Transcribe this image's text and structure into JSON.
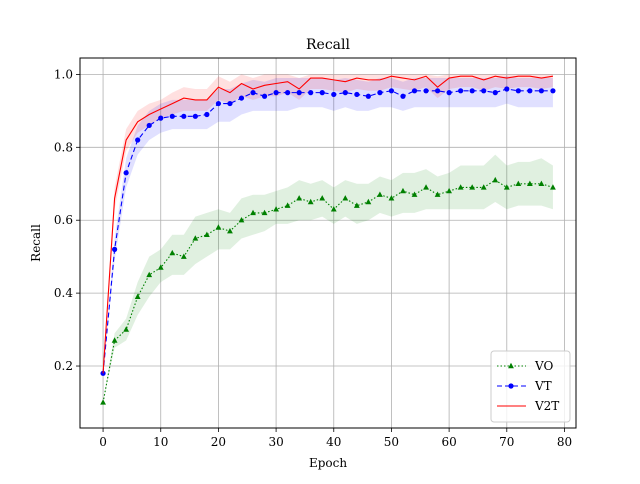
{
  "chart_data": {
    "type": "line",
    "title": "Recall",
    "xlabel": "Epoch",
    "ylabel": "Recall",
    "xlim": [
      -4,
      82
    ],
    "ylim": [
      0.03,
      1.045
    ],
    "xticks": [
      0,
      10,
      20,
      30,
      40,
      50,
      60,
      70,
      80
    ],
    "yticks": [
      0.2,
      0.4,
      0.6,
      0.8,
      1.0
    ],
    "xtick_labels": [
      "0",
      "10",
      "20",
      "30",
      "40",
      "50",
      "60",
      "70",
      "80"
    ],
    "ytick_labels": [
      "0.2",
      "0.4",
      "0.6",
      "0.8",
      "1.0"
    ],
    "grid": true,
    "legend_position": "lower-right",
    "x": [
      0,
      2,
      4,
      6,
      8,
      10,
      12,
      14,
      16,
      18,
      20,
      22,
      24,
      26,
      28,
      30,
      32,
      34,
      36,
      38,
      40,
      42,
      44,
      46,
      48,
      50,
      52,
      54,
      56,
      58,
      60,
      62,
      64,
      66,
      68,
      70,
      72,
      74,
      76,
      78
    ],
    "series": [
      {
        "name": "VO",
        "color": "#008000",
        "style": "dotted",
        "marker": "triangle",
        "values": [
          0.1,
          0.27,
          0.3,
          0.39,
          0.45,
          0.47,
          0.51,
          0.5,
          0.55,
          0.56,
          0.58,
          0.57,
          0.6,
          0.62,
          0.62,
          0.63,
          0.64,
          0.66,
          0.65,
          0.66,
          0.63,
          0.66,
          0.64,
          0.65,
          0.67,
          0.66,
          0.68,
          0.67,
          0.69,
          0.67,
          0.68,
          0.69,
          0.69,
          0.69,
          0.71,
          0.69,
          0.7,
          0.7,
          0.7,
          0.69
        ],
        "lower": [
          0.1,
          0.25,
          0.27,
          0.34,
          0.39,
          0.43,
          0.45,
          0.45,
          0.48,
          0.5,
          0.52,
          0.52,
          0.55,
          0.56,
          0.57,
          0.59,
          0.59,
          0.6,
          0.6,
          0.61,
          0.59,
          0.61,
          0.59,
          0.6,
          0.62,
          0.61,
          0.62,
          0.62,
          0.63,
          0.63,
          0.63,
          0.63,
          0.63,
          0.63,
          0.65,
          0.63,
          0.64,
          0.64,
          0.64,
          0.63
        ],
        "upper": [
          0.1,
          0.29,
          0.33,
          0.43,
          0.5,
          0.52,
          0.56,
          0.56,
          0.61,
          0.62,
          0.63,
          0.62,
          0.66,
          0.67,
          0.67,
          0.68,
          0.69,
          0.71,
          0.7,
          0.71,
          0.69,
          0.71,
          0.7,
          0.7,
          0.72,
          0.71,
          0.73,
          0.73,
          0.74,
          0.72,
          0.73,
          0.75,
          0.75,
          0.75,
          0.78,
          0.75,
          0.76,
          0.76,
          0.77,
          0.75
        ]
      },
      {
        "name": "VT",
        "color": "#0000ff",
        "style": "dashed",
        "marker": "circle",
        "values": [
          0.18,
          0.52,
          0.73,
          0.82,
          0.86,
          0.88,
          0.885,
          0.885,
          0.885,
          0.89,
          0.92,
          0.92,
          0.935,
          0.95,
          0.94,
          0.95,
          0.95,
          0.95,
          0.95,
          0.95,
          0.945,
          0.95,
          0.945,
          0.94,
          0.95,
          0.955,
          0.94,
          0.955,
          0.955,
          0.955,
          0.95,
          0.955,
          0.955,
          0.955,
          0.95,
          0.96,
          0.955,
          0.955,
          0.955,
          0.955
        ],
        "lower": [
          0.18,
          0.49,
          0.69,
          0.78,
          0.82,
          0.84,
          0.85,
          0.85,
          0.85,
          0.85,
          0.87,
          0.87,
          0.89,
          0.9,
          0.9,
          0.9,
          0.9,
          0.91,
          0.91,
          0.91,
          0.9,
          0.91,
          0.9,
          0.9,
          0.91,
          0.91,
          0.9,
          0.91,
          0.91,
          0.91,
          0.91,
          0.91,
          0.91,
          0.91,
          0.91,
          0.92,
          0.91,
          0.91,
          0.91,
          0.91
        ],
        "upper": [
          0.18,
          0.55,
          0.77,
          0.86,
          0.9,
          0.92,
          0.93,
          0.93,
          0.93,
          0.93,
          0.96,
          0.96,
          0.975,
          0.985,
          0.98,
          0.99,
          0.99,
          0.99,
          0.99,
          0.99,
          0.985,
          0.99,
          0.985,
          0.98,
          0.99,
          0.99,
          0.98,
          0.99,
          0.99,
          0.99,
          0.99,
          0.99,
          0.99,
          0.99,
          0.99,
          0.995,
          0.99,
          0.99,
          0.99,
          0.99
        ]
      },
      {
        "name": "V2T",
        "color": "#ff0000",
        "style": "solid",
        "marker": "none",
        "values": [
          0.18,
          0.66,
          0.82,
          0.87,
          0.89,
          0.905,
          0.92,
          0.935,
          0.93,
          0.93,
          0.965,
          0.95,
          0.975,
          0.96,
          0.97,
          0.975,
          0.98,
          0.96,
          0.99,
          0.99,
          0.985,
          0.98,
          0.99,
          0.985,
          0.985,
          0.995,
          0.99,
          0.985,
          0.995,
          0.965,
          0.99,
          0.995,
          0.995,
          0.985,
          0.995,
          0.99,
          0.995,
          0.995,
          0.99,
          0.995
        ],
        "lower": [
          0.18,
          0.63,
          0.79,
          0.84,
          0.86,
          0.88,
          0.89,
          0.9,
          0.9,
          0.9,
          0.93,
          0.92,
          0.94,
          0.93,
          0.94,
          0.94,
          0.95,
          0.93,
          0.96,
          0.96,
          0.955,
          0.95,
          0.96,
          0.955,
          0.955,
          0.965,
          0.96,
          0.955,
          0.965,
          0.935,
          0.96,
          0.965,
          0.965,
          0.955,
          0.965,
          0.96,
          0.965,
          0.965,
          0.96,
          0.965
        ],
        "upper": [
          0.18,
          0.69,
          0.85,
          0.9,
          0.92,
          0.93,
          0.95,
          0.965,
          0.96,
          0.96,
          0.995,
          0.98,
          1.0,
          0.99,
          1.0,
          1.0,
          1.0,
          0.99,
          1.0,
          1.0,
          1.0,
          1.0,
          1.0,
          1.0,
          1.0,
          1.0,
          1.0,
          1.0,
          1.0,
          0.995,
          1.0,
          1.0,
          1.0,
          1.0,
          1.0,
          1.0,
          1.0,
          1.0,
          1.0,
          1.0
        ]
      }
    ]
  }
}
